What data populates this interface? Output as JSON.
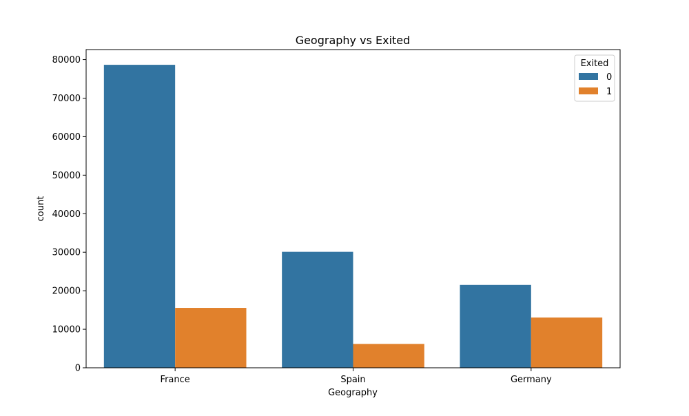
{
  "chart_data": {
    "type": "bar",
    "title": "Geography vs Exited",
    "xlabel": "Geography",
    "ylabel": "count",
    "categories": [
      "France",
      "Spain",
      "Germany"
    ],
    "series": [
      {
        "name": "0",
        "color": "#3274a1",
        "values": [
          78650,
          30100,
          21500
        ]
      },
      {
        "name": "1",
        "color": "#e1812c",
        "values": [
          15550,
          6200,
          13050
        ]
      }
    ],
    "ylim": [
      0,
      82600
    ],
    "yticks": [
      0,
      10000,
      20000,
      30000,
      40000,
      50000,
      60000,
      70000,
      80000
    ],
    "ytick_labels": [
      "0",
      "10000",
      "20000",
      "30000",
      "40000",
      "50000",
      "60000",
      "70000",
      "80000"
    ],
    "grid": false,
    "legend": {
      "title": "Exited",
      "placement": "top-right",
      "entries": [
        "0",
        "1"
      ]
    }
  }
}
